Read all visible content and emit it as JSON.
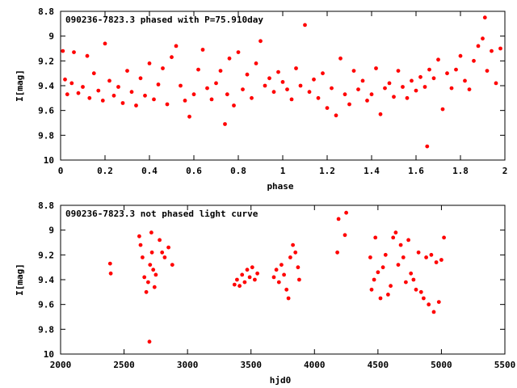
{
  "colors": {
    "points": "#ff0000",
    "axes": "#000000",
    "background": "#ffffff"
  },
  "chart_data": [
    {
      "type": "scatter",
      "title": "090236-7823.3 phased with P=75.910day",
      "xlabel": "phase",
      "ylabel": "I[mag]",
      "xlim": [
        0,
        2
      ],
      "ylim": [
        10,
        8.8
      ],
      "y_inverted": true,
      "xticks": [
        "0",
        "0.2",
        "0.4",
        "0.6",
        "0.8",
        "1",
        "1.2",
        "1.4",
        "1.6",
        "1.8",
        "2"
      ],
      "yticks": [
        "8.8",
        "9",
        "9.2",
        "9.4",
        "9.6",
        "9.8",
        "10"
      ],
      "grid": false,
      "series": [
        {
          "points": [
            [
              0.01,
              9.12
            ],
            [
              0.02,
              9.35
            ],
            [
              0.03,
              9.47
            ],
            [
              0.05,
              9.38
            ],
            [
              0.06,
              9.13
            ],
            [
              0.08,
              9.46
            ],
            [
              0.1,
              9.41
            ],
            [
              0.12,
              9.16
            ],
            [
              0.13,
              9.5
            ],
            [
              0.15,
              9.3
            ],
            [
              0.17,
              9.44
            ],
            [
              0.19,
              9.52
            ],
            [
              0.2,
              9.06
            ],
            [
              0.22,
              9.36
            ],
            [
              0.24,
              9.48
            ],
            [
              0.26,
              9.41
            ],
            [
              0.28,
              9.54
            ],
            [
              0.3,
              9.28
            ],
            [
              0.32,
              9.45
            ],
            [
              0.34,
              9.56
            ],
            [
              0.36,
              9.34
            ],
            [
              0.38,
              9.48
            ],
            [
              0.4,
              9.22
            ],
            [
              0.42,
              9.51
            ],
            [
              0.44,
              9.39
            ],
            [
              0.46,
              9.26
            ],
            [
              0.48,
              9.55
            ],
            [
              0.5,
              9.17
            ],
            [
              0.52,
              9.08
            ],
            [
              0.54,
              9.4
            ],
            [
              0.56,
              9.52
            ],
            [
              0.58,
              9.65
            ],
            [
              0.6,
              9.47
            ],
            [
              0.62,
              9.27
            ],
            [
              0.64,
              9.11
            ],
            [
              0.66,
              9.42
            ],
            [
              0.68,
              9.51
            ],
            [
              0.7,
              9.38
            ],
            [
              0.72,
              9.28
            ],
            [
              0.74,
              9.71
            ],
            [
              0.75,
              9.47
            ],
            [
              0.76,
              9.18
            ],
            [
              0.78,
              9.56
            ],
            [
              0.8,
              9.13
            ],
            [
              0.82,
              9.43
            ],
            [
              0.84,
              9.31
            ],
            [
              0.86,
              9.5
            ],
            [
              0.88,
              9.22
            ],
            [
              0.9,
              9.04
            ],
            [
              0.92,
              9.4
            ],
            [
              0.94,
              9.34
            ],
            [
              0.96,
              9.45
            ],
            [
              0.98,
              9.29
            ],
            [
              1.0,
              9.37
            ],
            [
              1.02,
              9.43
            ],
            [
              1.04,
              9.51
            ],
            [
              1.06,
              9.26
            ],
            [
              1.08,
              9.4
            ],
            [
              1.1,
              8.91
            ],
            [
              1.12,
              9.45
            ],
            [
              1.14,
              9.35
            ],
            [
              1.16,
              9.5
            ],
            [
              1.18,
              9.3
            ],
            [
              1.2,
              9.58
            ],
            [
              1.22,
              9.42
            ],
            [
              1.24,
              9.64
            ],
            [
              1.26,
              9.18
            ],
            [
              1.28,
              9.47
            ],
            [
              1.3,
              9.55
            ],
            [
              1.32,
              9.28
            ],
            [
              1.34,
              9.43
            ],
            [
              1.36,
              9.36
            ],
            [
              1.38,
              9.52
            ],
            [
              1.4,
              9.47
            ],
            [
              1.42,
              9.26
            ],
            [
              1.44,
              9.63
            ],
            [
              1.46,
              9.42
            ],
            [
              1.48,
              9.38
            ],
            [
              1.5,
              9.49
            ],
            [
              1.52,
              9.28
            ],
            [
              1.54,
              9.41
            ],
            [
              1.56,
              9.5
            ],
            [
              1.58,
              9.36
            ],
            [
              1.6,
              9.44
            ],
            [
              1.62,
              9.33
            ],
            [
              1.64,
              9.41
            ],
            [
              1.65,
              9.89
            ],
            [
              1.66,
              9.27
            ],
            [
              1.68,
              9.34
            ],
            [
              1.7,
              9.19
            ],
            [
              1.72,
              9.59
            ],
            [
              1.74,
              9.3
            ],
            [
              1.76,
              9.42
            ],
            [
              1.78,
              9.27
            ],
            [
              1.8,
              9.16
            ],
            [
              1.82,
              9.36
            ],
            [
              1.84,
              9.43
            ],
            [
              1.86,
              9.2
            ],
            [
              1.88,
              9.08
            ],
            [
              1.9,
              9.02
            ],
            [
              1.91,
              8.85
            ],
            [
              1.92,
              9.28
            ],
            [
              1.94,
              9.12
            ],
            [
              1.96,
              9.38
            ],
            [
              1.98,
              9.1
            ]
          ]
        }
      ]
    },
    {
      "type": "scatter",
      "title": "090236-7823.3 not phased light curve",
      "xlabel": "hjd0",
      "ylabel": "I[mag]",
      "xlim": [
        2000,
        5500
      ],
      "ylim": [
        10,
        8.8
      ],
      "y_inverted": true,
      "xticks": [
        "2000",
        "2500",
        "3000",
        "3500",
        "4000",
        "4500",
        "5000",
        "5500"
      ],
      "yticks": [
        "8.8",
        "9",
        "9.2",
        "9.4",
        "9.6",
        "9.8",
        "10"
      ],
      "grid": false,
      "series": [
        {
          "points": [
            [
              2390,
              9.27
            ],
            [
              2395,
              9.35
            ],
            [
              2620,
              9.05
            ],
            [
              2630,
              9.12
            ],
            [
              2645,
              9.22
            ],
            [
              2660,
              9.38
            ],
            [
              2675,
              9.5
            ],
            [
              2690,
              9.42
            ],
            [
              2700,
              9.9
            ],
            [
              2705,
              9.28
            ],
            [
              2715,
              9.02
            ],
            [
              2720,
              9.18
            ],
            [
              2730,
              9.32
            ],
            [
              2740,
              9.46
            ],
            [
              2750,
              9.36
            ],
            [
              2780,
              9.08
            ],
            [
              2800,
              9.18
            ],
            [
              2820,
              9.22
            ],
            [
              2850,
              9.14
            ],
            [
              2880,
              9.28
            ],
            [
              3370,
              9.44
            ],
            [
              3390,
              9.4
            ],
            [
              3410,
              9.45
            ],
            [
              3430,
              9.36
            ],
            [
              3450,
              9.42
            ],
            [
              3470,
              9.32
            ],
            [
              3490,
              9.38
            ],
            [
              3510,
              9.3
            ],
            [
              3530,
              9.4
            ],
            [
              3550,
              9.35
            ],
            [
              3680,
              9.38
            ],
            [
              3700,
              9.32
            ],
            [
              3720,
              9.42
            ],
            [
              3740,
              9.28
            ],
            [
              3760,
              9.36
            ],
            [
              3780,
              9.48
            ],
            [
              3795,
              9.55
            ],
            [
              3810,
              9.22
            ],
            [
              3830,
              9.12
            ],
            [
              3850,
              9.18
            ],
            [
              3870,
              9.3
            ],
            [
              3880,
              9.4
            ],
            [
              4180,
              9.18
            ],
            [
              4190,
              8.91
            ],
            [
              4240,
              9.04
            ],
            [
              4250,
              8.86
            ],
            [
              4440,
              9.22
            ],
            [
              4450,
              9.48
            ],
            [
              4470,
              9.4
            ],
            [
              4480,
              9.06
            ],
            [
              4500,
              9.34
            ],
            [
              4520,
              9.55
            ],
            [
              4540,
              9.3
            ],
            [
              4560,
              9.2
            ],
            [
              4580,
              9.52
            ],
            [
              4600,
              9.45
            ],
            [
              4620,
              9.06
            ],
            [
              4640,
              9.02
            ],
            [
              4660,
              9.28
            ],
            [
              4680,
              9.12
            ],
            [
              4700,
              9.22
            ],
            [
              4720,
              9.42
            ],
            [
              4740,
              9.08
            ],
            [
              4760,
              9.35
            ],
            [
              4780,
              9.4
            ],
            [
              4800,
              9.48
            ],
            [
              4820,
              9.18
            ],
            [
              4840,
              9.5
            ],
            [
              4860,
              9.55
            ],
            [
              4880,
              9.22
            ],
            [
              4900,
              9.6
            ],
            [
              4920,
              9.2
            ],
            [
              4940,
              9.66
            ],
            [
              4960,
              9.26
            ],
            [
              4980,
              9.58
            ],
            [
              5000,
              9.24
            ],
            [
              5020,
              9.06
            ]
          ]
        }
      ]
    }
  ]
}
